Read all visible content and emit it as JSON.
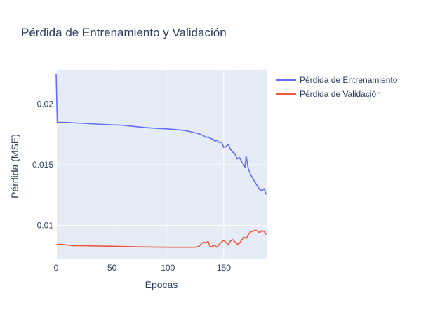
{
  "chart_data": {
    "type": "line",
    "title": "Pérdida de Entrenamiento y Validación",
    "xlabel": "Épocas",
    "ylabel": "Pérdida (MSE)",
    "xlim": [
      0,
      189
    ],
    "ylim": [
      0.0072,
      0.0228
    ],
    "x_ticks": [
      0,
      50,
      100,
      150
    ],
    "x_tick_labels": [
      "0",
      "50",
      "100",
      "150"
    ],
    "y_ticks": [
      0.01,
      0.015,
      0.02
    ],
    "y_tick_labels": [
      "0.01",
      "0.015",
      "0.02"
    ],
    "grid": true,
    "legend_position": "top-right",
    "series": [
      {
        "name": "Pérdida de Entrenamiento",
        "color": "#636efa",
        "x": [
          0,
          1,
          10,
          20,
          30,
          40,
          50,
          60,
          70,
          80,
          90,
          100,
          110,
          115,
          120,
          125,
          128,
          130,
          132,
          134,
          136,
          138,
          140,
          142,
          144,
          146,
          148,
          150,
          152,
          154,
          156,
          158,
          160,
          162,
          164,
          166,
          168,
          169,
          170,
          172,
          174,
          176,
          178,
          180,
          182,
          184,
          186,
          188
        ],
        "y": [
          0.0225,
          0.0185,
          0.01848,
          0.01843,
          0.01838,
          0.01833,
          0.01829,
          0.01825,
          0.01815,
          0.01806,
          0.018,
          0.01795,
          0.01788,
          0.01782,
          0.01773,
          0.01762,
          0.01755,
          0.01748,
          0.0174,
          0.01725,
          0.0173,
          0.01718,
          0.01712,
          0.01695,
          0.01702,
          0.01683,
          0.01688,
          0.01642,
          0.01652,
          0.01668,
          0.01628,
          0.01605,
          0.01592,
          0.01548,
          0.0156,
          0.01525,
          0.01498,
          0.0148,
          0.01572,
          0.01465,
          0.0142,
          0.01385,
          0.01355,
          0.01325,
          0.01298,
          0.01285,
          0.01302,
          0.01255
        ]
      },
      {
        "name": "Pérdida de Validación",
        "color": "#ef553b",
        "x": [
          0,
          3,
          6,
          10,
          15,
          25,
          50,
          75,
          100,
          110,
          120,
          125,
          128,
          130,
          132,
          134,
          136,
          138,
          140,
          142,
          144,
          146,
          148,
          150,
          152,
          154,
          156,
          158,
          160,
          162,
          164,
          166,
          168,
          170,
          172,
          174,
          176,
          178,
          180,
          182,
          184,
          186,
          188
        ],
        "y": [
          0.0084,
          0.00845,
          0.00842,
          0.00838,
          0.00833,
          0.00832,
          0.00828,
          0.00823,
          0.0082,
          0.0082,
          0.0082,
          0.0082,
          0.00828,
          0.0085,
          0.00862,
          0.00855,
          0.00868,
          0.00822,
          0.0083,
          0.00835,
          0.0082,
          0.00845,
          0.00862,
          0.00878,
          0.00858,
          0.0084,
          0.00872,
          0.00882,
          0.00865,
          0.00845,
          0.00852,
          0.0088,
          0.00902,
          0.00892,
          0.00925,
          0.00945,
          0.00955,
          0.0096,
          0.00955,
          0.0094,
          0.00958,
          0.0095,
          0.00925
        ]
      }
    ]
  }
}
